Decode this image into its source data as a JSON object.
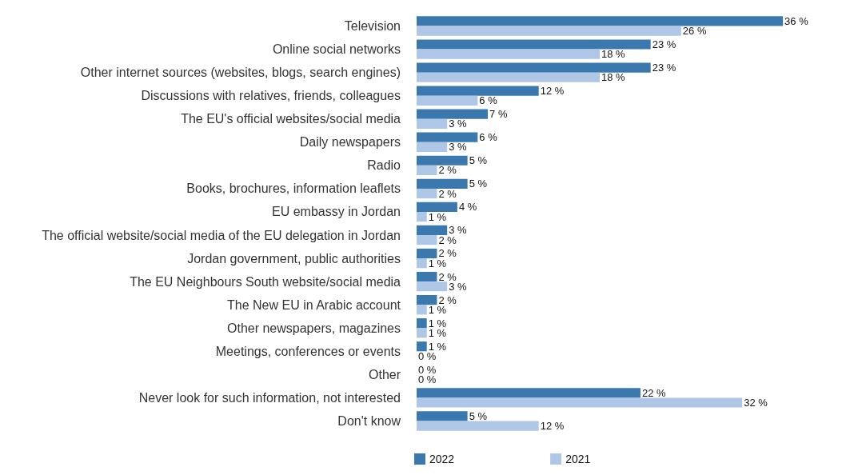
{
  "chart_data": {
    "type": "bar",
    "orientation": "horizontal",
    "categories": [
      "Television",
      "Online social networks",
      "Other internet sources (websites, blogs, search engines)",
      "Discussions with relatives, friends, colleagues",
      "The EU's official websites/social media",
      "Daily newspapers",
      "Radio",
      "Books, brochures, information leaflets",
      "EU embassy in Jordan",
      "The official website/social media of the EU delegation in Jordan",
      "Jordan government, public authorities",
      "The EU Neighbours South website/social media",
      "The New EU in Arabic account",
      "Other newspapers, magazines",
      "Meetings, conferences or events",
      "Other",
      "Never look for such information, not interested",
      "Don't know"
    ],
    "series": [
      {
        "name": "2022",
        "color": "#3a78ae",
        "values": [
          36,
          23,
          23,
          12,
          7,
          6,
          5,
          5,
          4,
          3,
          2,
          2,
          2,
          1,
          1,
          0,
          22,
          5
        ],
        "value_labels": [
          "36 %",
          "23 %",
          "23 %",
          "12 %",
          "7 %",
          "6 %",
          "5 %",
          "5 %",
          "4 %",
          "3 %",
          "2 %",
          "2 %",
          "2 %",
          "1 %",
          "1 %",
          "0 %",
          "22 %",
          "5 %"
        ]
      },
      {
        "name": "2021",
        "color": "#aec7e6",
        "values": [
          26,
          18,
          18,
          6,
          3,
          3,
          2,
          2,
          1,
          2,
          1,
          3,
          1,
          1,
          0,
          0,
          32,
          12
        ],
        "value_labels": [
          "26 %",
          "18 %",
          "18 %",
          "6 %",
          "3 %",
          "3 %",
          "2 %",
          "2 %",
          "1 %",
          "2 %",
          "1 %",
          "3 %",
          "1 %",
          "1 %",
          "0 %",
          "0 %",
          "32 %",
          "12 %"
        ]
      }
    ],
    "legend": "bottom left"
  }
}
